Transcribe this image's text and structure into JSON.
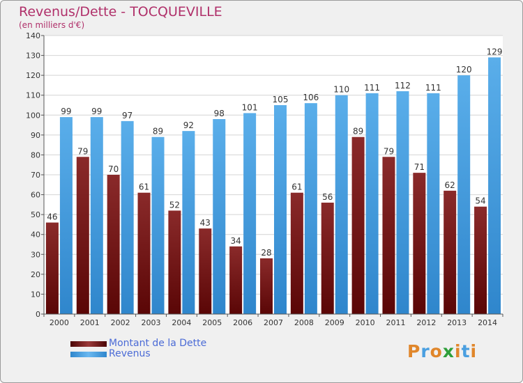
{
  "header": {
    "title": "Revenus/Dette - TOCQUEVILLE",
    "subtitle": "(en milliers d'€)"
  },
  "colors": {
    "debt": "#7a1616",
    "revenue": "#4a9fe0",
    "title": "#b0306a",
    "legend_text": "#4b6bd6"
  },
  "chart_data": {
    "type": "bar",
    "categories": [
      "2000",
      "2001",
      "2002",
      "2003",
      "2004",
      "2005",
      "2006",
      "2007",
      "2008",
      "2009",
      "2010",
      "2011",
      "2012",
      "2013",
      "2014"
    ],
    "series": [
      {
        "name": "Montant de la Dette",
        "values": [
          46,
          79,
          70,
          61,
          52,
          43,
          34,
          28,
          61,
          56,
          89,
          79,
          71,
          62,
          54
        ]
      },
      {
        "name": "Revenus",
        "values": [
          99,
          99,
          97,
          89,
          92,
          98,
          101,
          105,
          106,
          110,
          111,
          112,
          111,
          120,
          129
        ]
      }
    ],
    "ylim": [
      0,
      140
    ],
    "yticks": [
      0,
      10,
      20,
      30,
      40,
      50,
      60,
      70,
      80,
      90,
      100,
      110,
      120,
      130,
      140
    ],
    "grid": true,
    "legend_position": "bottom-left"
  },
  "legend": {
    "items": [
      {
        "label": "Montant de la Dette",
        "icon": "debt-swatch"
      },
      {
        "label": "Revenus",
        "icon": "revenue-swatch"
      }
    ]
  },
  "logo": {
    "letters": [
      "P",
      "r",
      "o",
      "x",
      "i",
      "t",
      "i"
    ],
    "colors": [
      "#e0862a",
      "#4a9fe0",
      "#e0862a",
      "#2e9f3a",
      "#e0862a",
      "#4a9fe0",
      "#e0862a"
    ]
  }
}
